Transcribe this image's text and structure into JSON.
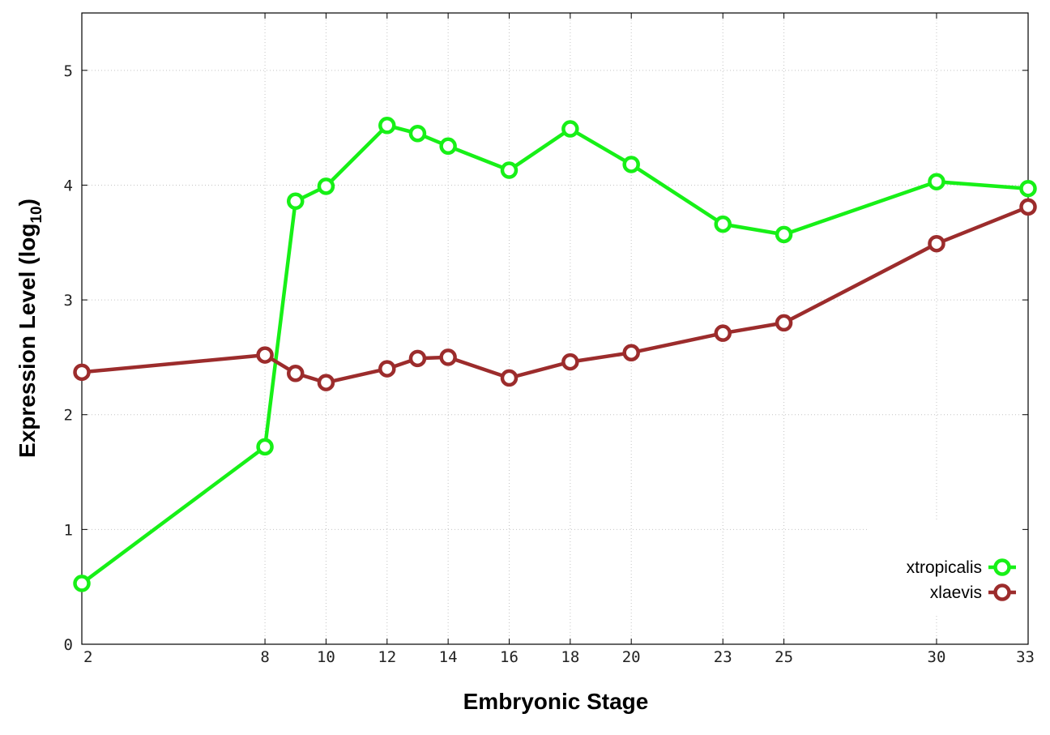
{
  "chart_data": {
    "type": "line",
    "xlabel": "Embryonic Stage",
    "ylabel_main": "Expression Level (log",
    "ylabel_sub": "10",
    "ylabel_close": ")",
    "x": [
      2,
      8,
      9,
      10,
      12,
      13,
      14,
      16,
      18,
      20,
      23,
      25,
      30,
      33
    ],
    "x_tick_labels": [
      "2",
      "8",
      "10",
      "12",
      "14",
      "16",
      "18",
      "20",
      "23",
      "25",
      "30",
      "33"
    ],
    "y_tick_labels": [
      "0",
      "1",
      "2",
      "3",
      "4",
      "5"
    ],
    "ylim": [
      0,
      5.5
    ],
    "grid": true,
    "legend_position": "bottom-right",
    "series": [
      {
        "name": "xtropicalis",
        "color": "#17f017",
        "values": [
          0.53,
          1.72,
          3.86,
          3.99,
          4.52,
          4.45,
          4.34,
          4.13,
          4.49,
          4.18,
          3.66,
          3.57,
          4.03,
          3.97
        ]
      },
      {
        "name": "xlaevis",
        "color": "#9c2c2c",
        "values": [
          2.37,
          2.52,
          2.36,
          2.28,
          2.4,
          2.49,
          2.5,
          2.32,
          2.46,
          2.54,
          2.71,
          2.8,
          3.49,
          3.81
        ]
      }
    ]
  }
}
